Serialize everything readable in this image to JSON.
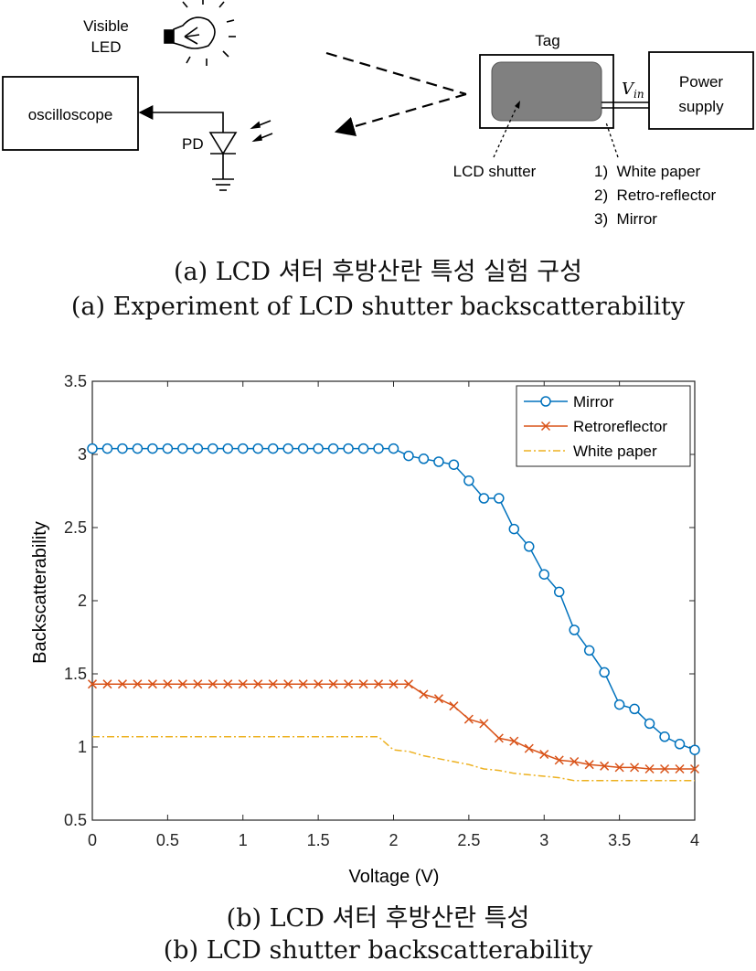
{
  "diagram": {
    "led_label_1": "Visible",
    "led_label_2": "LED",
    "oscilloscope_label": "oscilloscope",
    "pd_label": "PD",
    "tag_label": "Tag",
    "vin_label": "V",
    "vin_sub": "in",
    "power_label_1": "Power",
    "power_label_2": "supply",
    "lcd_label": "LCD shutter",
    "options": [
      "1)  White paper",
      "2)  Retro-reflector",
      "3)  Mirror"
    ]
  },
  "captions": {
    "a_kr": "(a) LCD 셔터 후방산란 특성 실험 구성",
    "a_en": "(a) Experiment of LCD shutter backscatterability",
    "b_kr": "(b) LCD 셔터 후방산란 특성",
    "b_en": "(b) LCD shutter backscatterability"
  },
  "chart_data": {
    "type": "line",
    "xlabel": "Voltage (V)",
    "ylabel": "Backscatterability",
    "xlim": [
      0,
      4
    ],
    "ylim": [
      0.5,
      3.5
    ],
    "xticks": [
      "0",
      "0.5",
      "1",
      "1.5",
      "2",
      "2.5",
      "3",
      "3.5",
      "4"
    ],
    "yticks": [
      "0.5",
      "1",
      "1.5",
      "2",
      "2.5",
      "3",
      "3.5"
    ],
    "legend_position": "top-right",
    "x": [
      0,
      0.1,
      0.2,
      0.3,
      0.4,
      0.5,
      0.6,
      0.7,
      0.8,
      0.9,
      1.0,
      1.1,
      1.2,
      1.3,
      1.4,
      1.5,
      1.6,
      1.7,
      1.8,
      1.9,
      2.0,
      2.1,
      2.2,
      2.3,
      2.4,
      2.5,
      2.6,
      2.7,
      2.8,
      2.9,
      3.0,
      3.1,
      3.2,
      3.3,
      3.4,
      3.5,
      3.6,
      3.7,
      3.8,
      3.9,
      4.0
    ],
    "series": [
      {
        "name": "Mirror",
        "color": "#0072BD",
        "marker": "circle",
        "style": "solid",
        "values": [
          3.04,
          3.04,
          3.04,
          3.04,
          3.04,
          3.04,
          3.04,
          3.04,
          3.04,
          3.04,
          3.04,
          3.04,
          3.04,
          3.04,
          3.04,
          3.04,
          3.04,
          3.04,
          3.04,
          3.04,
          3.04,
          2.99,
          2.97,
          2.95,
          2.93,
          2.82,
          2.7,
          2.7,
          2.49,
          2.37,
          2.18,
          2.06,
          1.8,
          1.66,
          1.51,
          1.29,
          1.26,
          1.16,
          1.07,
          1.02,
          0.98
        ]
      },
      {
        "name": "Retroreflector",
        "color": "#D95319",
        "marker": "x",
        "style": "solid",
        "values": [
          1.43,
          1.43,
          1.43,
          1.43,
          1.43,
          1.43,
          1.43,
          1.43,
          1.43,
          1.43,
          1.43,
          1.43,
          1.43,
          1.43,
          1.43,
          1.43,
          1.43,
          1.43,
          1.43,
          1.43,
          1.43,
          1.43,
          1.36,
          1.33,
          1.28,
          1.19,
          1.16,
          1.06,
          1.04,
          0.99,
          0.95,
          0.91,
          0.9,
          0.88,
          0.87,
          0.86,
          0.86,
          0.85,
          0.85,
          0.85,
          0.85
        ]
      },
      {
        "name": "White paper",
        "color": "#EDB120",
        "marker": "none",
        "style": "dashdot",
        "values": [
          1.07,
          1.07,
          1.07,
          1.07,
          1.07,
          1.07,
          1.07,
          1.07,
          1.07,
          1.07,
          1.07,
          1.07,
          1.07,
          1.07,
          1.07,
          1.07,
          1.07,
          1.07,
          1.07,
          1.07,
          0.98,
          0.97,
          0.94,
          0.92,
          0.9,
          0.88,
          0.85,
          0.84,
          0.82,
          0.81,
          0.8,
          0.79,
          0.77,
          0.77,
          0.77,
          0.77,
          0.77,
          0.77,
          0.77,
          0.77,
          0.77
        ]
      }
    ]
  }
}
